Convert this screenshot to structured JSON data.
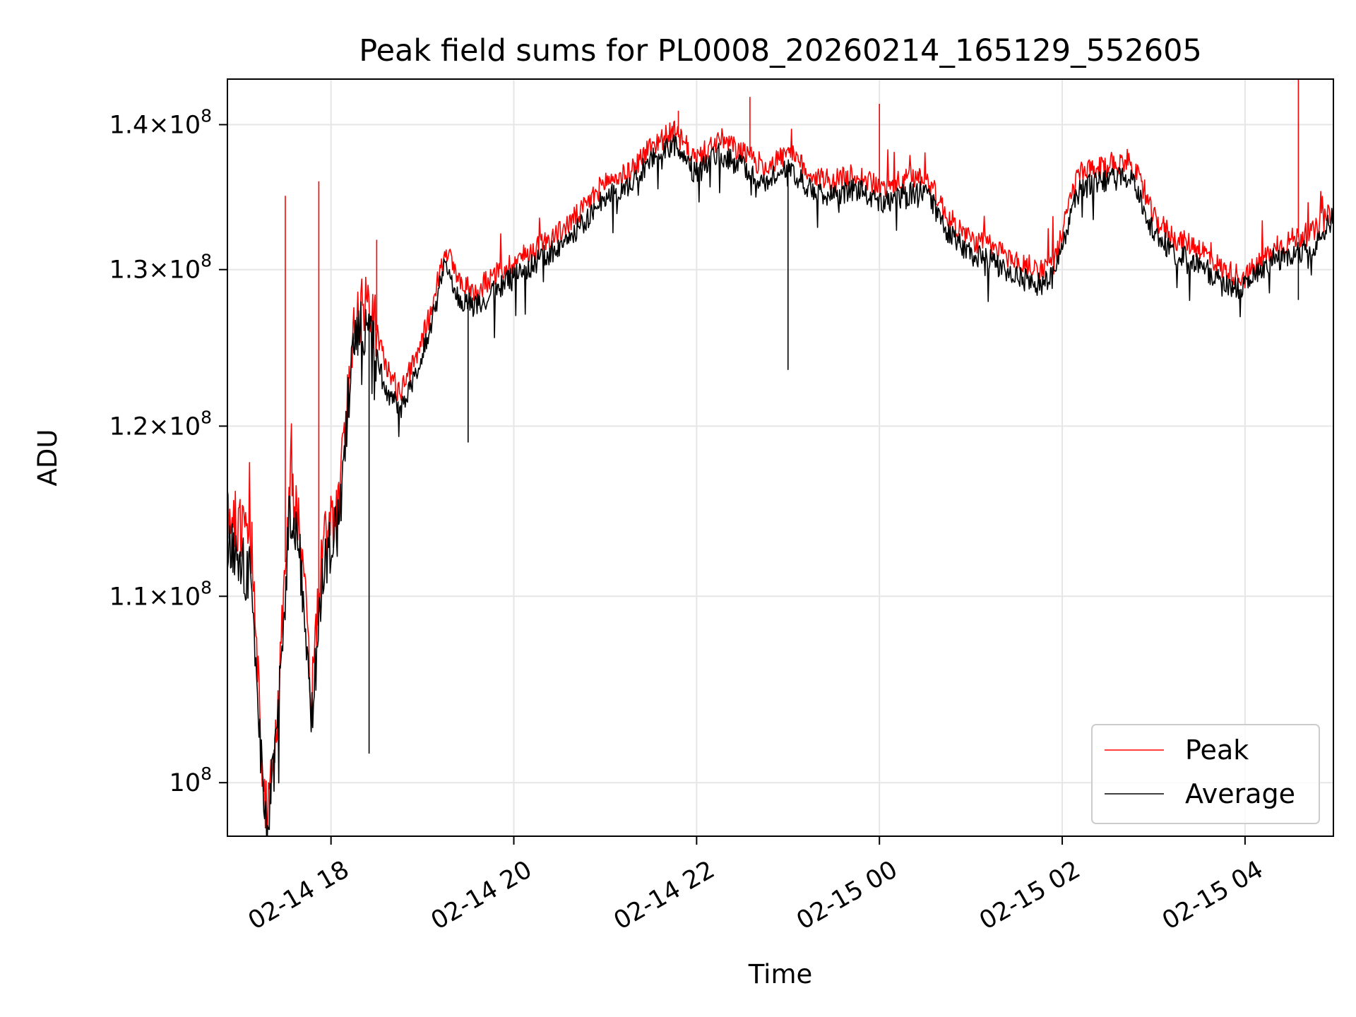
{
  "chart_data": {
    "type": "line",
    "title": "Peak field sums for PL0008_20260214_165129_552605",
    "xlabel": "Time",
    "ylabel": "ADU",
    "y_scale": "log",
    "x_range": [
      "2026-02-14 16:52",
      "2026-02-15 04:58"
    ],
    "ylim": [
      97300000,
      143300000
    ],
    "grid": true,
    "legend_position": "lower-right",
    "x_ticks": [
      {
        "label": "02-14 18",
        "value": "2026-02-14 18:00"
      },
      {
        "label": "02-14 20",
        "value": "2026-02-14 20:00"
      },
      {
        "label": "02-14 22",
        "value": "2026-02-14 22:00"
      },
      {
        "label": "02-15 00",
        "value": "2026-02-15 00:00"
      },
      {
        "label": "02-15 02",
        "value": "2026-02-15 02:00"
      },
      {
        "label": "02-15 04",
        "value": "2026-02-15 04:00"
      }
    ],
    "y_ticks": [
      {
        "mantissa": "1.4",
        "value": 140000000
      },
      {
        "mantissa": "1.3",
        "value": 130000000
      },
      {
        "mantissa": "1.2",
        "value": 120000000
      },
      {
        "mantissa": "1.1",
        "value": 110000000
      },
      {
        "mantissa": "",
        "value": 100000000
      }
    ],
    "y_tick_times": "×",
    "y_tick_base": "10",
    "y_tick_exp": "8",
    "series": [
      {
        "name": "Peak",
        "color": "#ff0000",
        "x": [
          "2026-02-14 16:52",
          "2026-02-14 17:00",
          "2026-02-14 17:08",
          "2026-02-14 17:14",
          "2026-02-14 17:18",
          "2026-02-14 17:25",
          "2026-02-14 17:33",
          "2026-02-14 17:40",
          "2026-02-14 17:47",
          "2026-02-14 17:55",
          "2026-02-14 18:05",
          "2026-02-14 18:15",
          "2026-02-14 18:25",
          "2026-02-14 18:35",
          "2026-02-14 18:45",
          "2026-02-14 18:55",
          "2026-02-14 19:05",
          "2026-02-14 19:15",
          "2026-02-14 19:25",
          "2026-02-14 19:35",
          "2026-02-14 19:45",
          "2026-02-14 20:00",
          "2026-02-14 20:15",
          "2026-02-14 20:30",
          "2026-02-14 20:45",
          "2026-02-14 21:00",
          "2026-02-14 21:15",
          "2026-02-14 21:30",
          "2026-02-14 21:45",
          "2026-02-14 22:00",
          "2026-02-14 22:15",
          "2026-02-14 22:30",
          "2026-02-14 22:45",
          "2026-02-14 23:00",
          "2026-02-14 23:15",
          "2026-02-14 23:30",
          "2026-02-14 23:45",
          "2026-02-15 00:00",
          "2026-02-15 00:15",
          "2026-02-15 00:30",
          "2026-02-15 00:45",
          "2026-02-15 01:00",
          "2026-02-15 01:15",
          "2026-02-15 01:30",
          "2026-02-15 01:45",
          "2026-02-15 01:55",
          "2026-02-15 02:10",
          "2026-02-15 02:30",
          "2026-02-15 02:45",
          "2026-02-15 03:00",
          "2026-02-15 03:15",
          "2026-02-15 03:30",
          "2026-02-15 03:45",
          "2026-02-15 04:00",
          "2026-02-15 04:15",
          "2026-02-15 04:30",
          "2026-02-15 04:45",
          "2026-02-15 04:58"
        ],
        "y": [
          115000000,
          114000000,
          113000000,
          102000000,
          98000000,
          103500000,
          117000000,
          114000000,
          104000000,
          113500000,
          115000000,
          126500000,
          128000000,
          124000000,
          122000000,
          124000000,
          127000000,
          131500000,
          129000000,
          128500000,
          129500000,
          130500000,
          131500000,
          132500000,
          134000000,
          136000000,
          136500000,
          138500000,
          139500000,
          137500000,
          139000000,
          138000000,
          137000000,
          138000000,
          136500000,
          136000000,
          136500000,
          135500000,
          136000000,
          136500000,
          133500000,
          132000000,
          131500000,
          130500000,
          130000000,
          130500000,
          136500000,
          137000000,
          137500000,
          133500000,
          132000000,
          131500000,
          130000000,
          129500000,
          131000000,
          132000000,
          132500000,
          134000000
        ],
        "spikes": [
          {
            "x": "2026-02-14 17:30",
            "y": 135000000
          },
          {
            "x": "2026-02-14 17:52",
            "y": 136000000
          },
          {
            "x": "2026-02-14 18:30",
            "y": 132000000
          },
          {
            "x": "2026-02-14 21:48",
            "y": 141000000
          },
          {
            "x": "2026-02-14 22:35",
            "y": 142000000
          },
          {
            "x": "2026-02-15 00:00",
            "y": 141500000
          },
          {
            "x": "2026-02-15 04:35",
            "y": 143300000
          }
        ]
      },
      {
        "name": "Average",
        "color": "#000000",
        "x": [
          "2026-02-14 16:52",
          "2026-02-14 17:00",
          "2026-02-14 17:08",
          "2026-02-14 17:14",
          "2026-02-14 17:18",
          "2026-02-14 17:25",
          "2026-02-14 17:33",
          "2026-02-14 17:40",
          "2026-02-14 17:47",
          "2026-02-14 17:55",
          "2026-02-14 18:05",
          "2026-02-14 18:15",
          "2026-02-14 18:25",
          "2026-02-14 18:35",
          "2026-02-14 18:45",
          "2026-02-14 18:55",
          "2026-02-14 19:05",
          "2026-02-14 19:15",
          "2026-02-14 19:25",
          "2026-02-14 19:35",
          "2026-02-14 19:45",
          "2026-02-14 20:00",
          "2026-02-14 20:15",
          "2026-02-14 20:30",
          "2026-02-14 20:45",
          "2026-02-14 21:00",
          "2026-02-14 21:15",
          "2026-02-14 21:30",
          "2026-02-14 21:45",
          "2026-02-14 22:00",
          "2026-02-14 22:15",
          "2026-02-14 22:30",
          "2026-02-14 22:45",
          "2026-02-14 23:00",
          "2026-02-14 23:15",
          "2026-02-14 23:30",
          "2026-02-14 23:45",
          "2026-02-15 00:00",
          "2026-02-15 00:15",
          "2026-02-15 00:30",
          "2026-02-15 00:45",
          "2026-02-15 01:00",
          "2026-02-15 01:15",
          "2026-02-15 01:30",
          "2026-02-15 01:45",
          "2026-02-15 01:55",
          "2026-02-15 02:10",
          "2026-02-15 02:30",
          "2026-02-15 02:45",
          "2026-02-15 03:00",
          "2026-02-15 03:15",
          "2026-02-15 03:30",
          "2026-02-15 03:45",
          "2026-02-15 04:00",
          "2026-02-15 04:15",
          "2026-02-15 04:30",
          "2026-02-15 04:45",
          "2026-02-15 04:58"
        ],
        "y": [
          113000000,
          112000000,
          111000000,
          101000000,
          97500000,
          103000000,
          115000000,
          112000000,
          103000000,
          112000000,
          114000000,
          125500000,
          126500000,
          122500000,
          121000000,
          123000000,
          126000000,
          130500000,
          128000000,
          127500000,
          128500000,
          129500000,
          130500000,
          131500000,
          133000000,
          135000000,
          135500000,
          137500000,
          138500000,
          136500000,
          138000000,
          137000000,
          136000000,
          137000000,
          135500000,
          135000000,
          135500000,
          134500000,
          135000000,
          135500000,
          132500000,
          131000000,
          130500000,
          129500000,
          129000000,
          129500000,
          135500000,
          136000000,
          136500000,
          132500000,
          131000000,
          130500000,
          129000000,
          128800000,
          130500000,
          131000000,
          131500000,
          133500000
        ],
        "spikes": [
          {
            "x": "2026-02-14 18:25",
            "y": 101500000
          },
          {
            "x": "2026-02-14 19:30",
            "y": 119000000
          },
          {
            "x": "2026-02-14 23:00",
            "y": 123500000
          },
          {
            "x": "2026-02-15 04:35",
            "y": 128000000
          }
        ]
      }
    ]
  }
}
